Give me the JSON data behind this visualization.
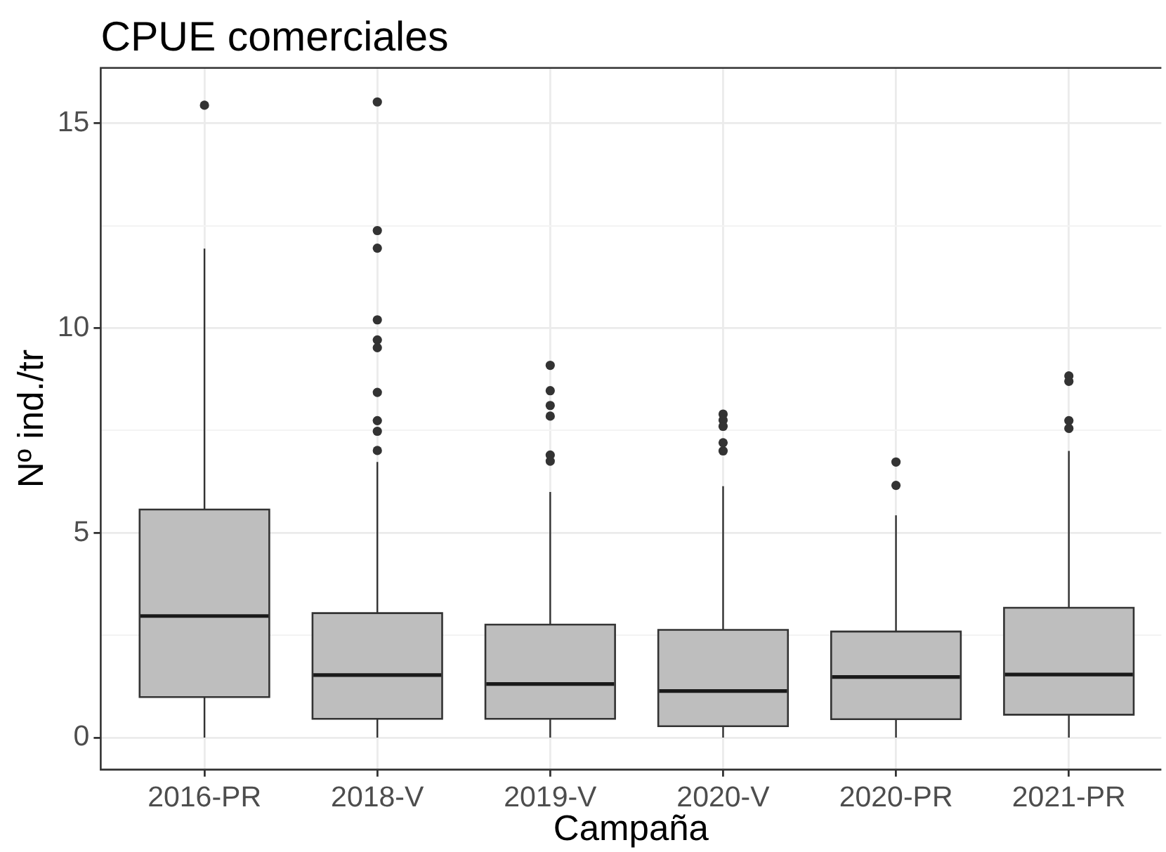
{
  "chart_data": {
    "type": "box",
    "title": "CPUE comerciales",
    "xlabel": "Campaña",
    "ylabel": "Nº ind./tr",
    "categories": [
      "2016-PR",
      "2018-V",
      "2019-V",
      "2020-V",
      "2020-PR",
      "2021-PR"
    ],
    "boxes": [
      {
        "low": 0,
        "q1": 0.99,
        "median": 2.97,
        "q3": 5.57,
        "high": 11.94,
        "outliers": [
          15.44
        ]
      },
      {
        "low": 0,
        "q1": 0.46,
        "median": 1.53,
        "q3": 3.04,
        "high": 6.73,
        "outliers": [
          15.52,
          12.38,
          11.95,
          10.2,
          9.71,
          9.52,
          8.43,
          7.74,
          7.48,
          7.01
        ]
      },
      {
        "low": 0,
        "q1": 0.46,
        "median": 1.31,
        "q3": 2.76,
        "high": 6.0,
        "outliers": [
          9.09,
          8.47,
          8.11,
          7.85,
          6.9,
          6.75
        ]
      },
      {
        "low": 0,
        "q1": 0.28,
        "median": 1.14,
        "q3": 2.63,
        "high": 6.14,
        "outliers": [
          7.9,
          7.75,
          7.6,
          7.2,
          7.0
        ]
      },
      {
        "low": 0,
        "q1": 0.45,
        "median": 1.48,
        "q3": 2.59,
        "high": 5.43,
        "outliers": [
          6.73,
          6.16
        ]
      },
      {
        "low": 0,
        "q1": 0.56,
        "median": 1.54,
        "q3": 3.17,
        "high": 7.0,
        "outliers": [
          8.83,
          8.7,
          7.74,
          7.55
        ]
      }
    ],
    "color": "#bebebe",
    "ylim": [
      -0.78,
      16.35
    ],
    "yticks": [
      0,
      {
        "value": 2.5,
        "label": null
      },
      5,
      {
        "value": 7.5,
        "label": null
      },
      10,
      {
        "value": 12.5,
        "label": null
      },
      15
    ],
    "grid": true
  }
}
